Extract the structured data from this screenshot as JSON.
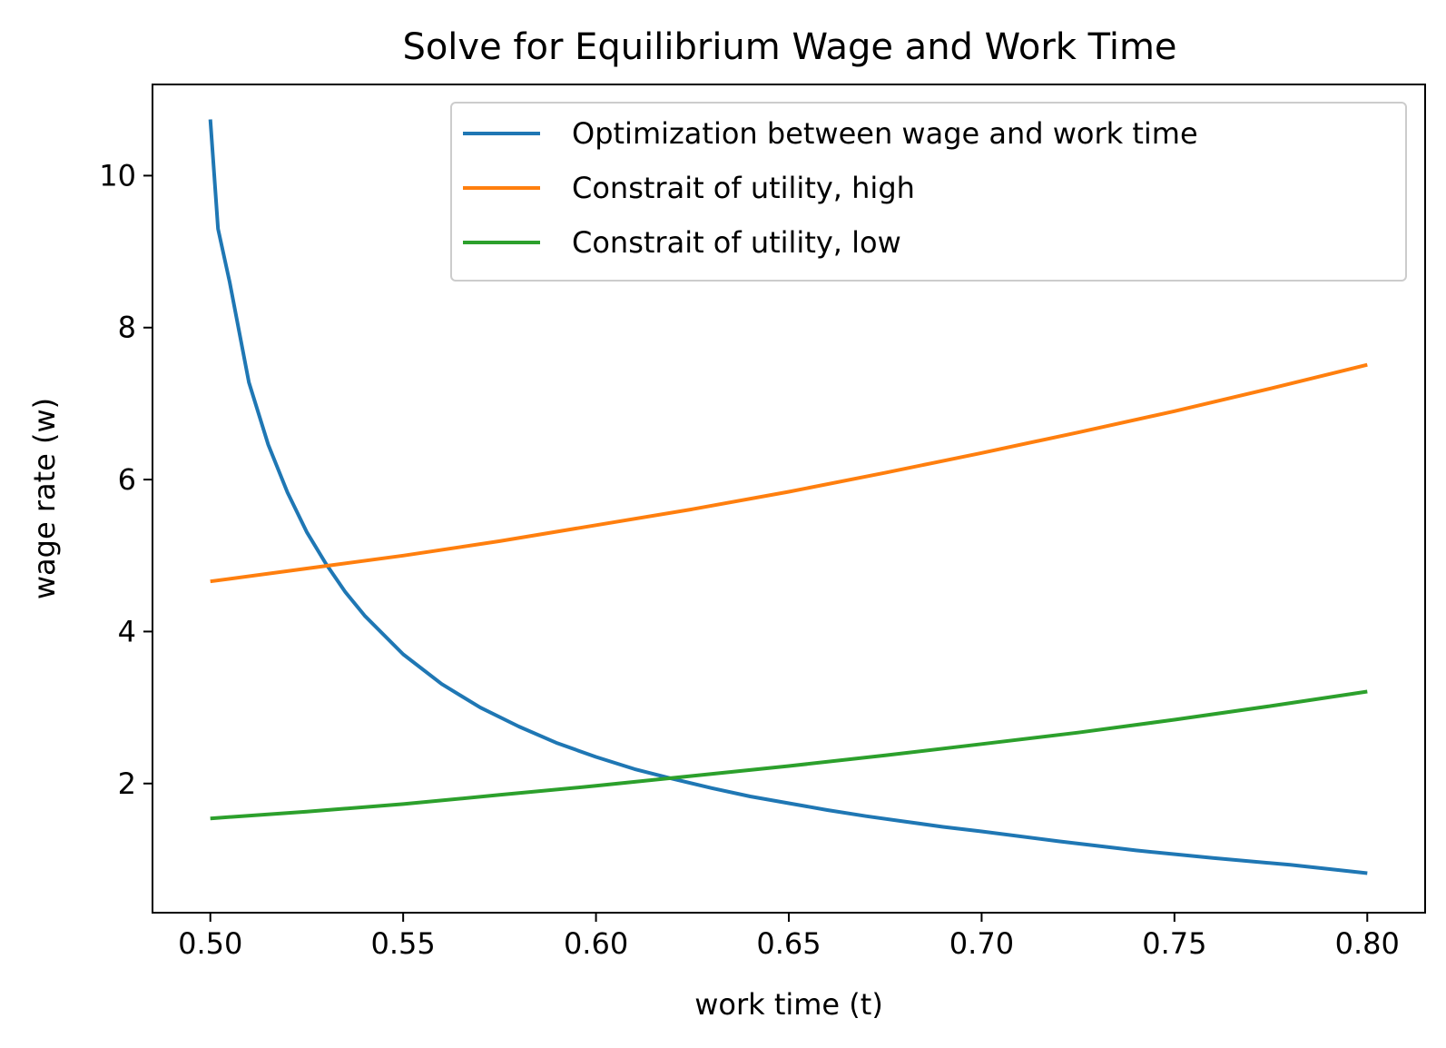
{
  "chart_data": {
    "type": "line",
    "title": "Solve for Equilibrium Wage and Work Time",
    "xlabel": "work time (t)",
    "ylabel": "wage rate (w)",
    "xlim": [
      0.485,
      0.815
    ],
    "ylim": [
      0.3,
      11.2
    ],
    "xticks": [
      0.5,
      0.55,
      0.6,
      0.65,
      0.7,
      0.75,
      0.8
    ],
    "xtick_labels": [
      "0.50",
      "0.55",
      "0.60",
      "0.65",
      "0.70",
      "0.75",
      "0.80"
    ],
    "yticks": [
      2,
      4,
      6,
      8,
      10
    ],
    "ytick_labels": [
      "2",
      "4",
      "6",
      "8",
      "10"
    ],
    "grid": false,
    "legend": "top-right",
    "series": [
      {
        "name": "Optimization between wage and work time",
        "color": "#1f77b4",
        "x": [
          0.5,
          0.502,
          0.505,
          0.51,
          0.515,
          0.52,
          0.525,
          0.53,
          0.535,
          0.54,
          0.55,
          0.56,
          0.57,
          0.58,
          0.59,
          0.6,
          0.61,
          0.62,
          0.63,
          0.64,
          0.65,
          0.66,
          0.67,
          0.68,
          0.69,
          0.7,
          0.72,
          0.74,
          0.76,
          0.78,
          0.8
        ],
        "y": [
          10.74,
          9.3,
          8.6,
          7.28,
          6.46,
          5.83,
          5.31,
          4.89,
          4.52,
          4.21,
          3.7,
          3.31,
          3.0,
          2.75,
          2.53,
          2.35,
          2.19,
          2.06,
          1.94,
          1.83,
          1.74,
          1.65,
          1.57,
          1.5,
          1.43,
          1.37,
          1.24,
          1.12,
          1.02,
          0.93,
          0.82
        ]
      },
      {
        "name": "Constrait of utility, high",
        "color": "#ff7f0e",
        "x": [
          0.5,
          0.525,
          0.55,
          0.575,
          0.6,
          0.625,
          0.65,
          0.675,
          0.7,
          0.725,
          0.75,
          0.775,
          0.8
        ],
        "y": [
          4.66,
          4.83,
          5.0,
          5.19,
          5.4,
          5.61,
          5.84,
          6.09,
          6.35,
          6.62,
          6.9,
          7.2,
          7.51
        ]
      },
      {
        "name": "Constrait of utility, low",
        "color": "#2ca02c",
        "x": [
          0.5,
          0.525,
          0.55,
          0.575,
          0.6,
          0.625,
          0.65,
          0.675,
          0.7,
          0.725,
          0.75,
          0.775,
          0.8
        ],
        "y": [
          1.54,
          1.63,
          1.73,
          1.85,
          1.97,
          2.1,
          2.23,
          2.37,
          2.52,
          2.67,
          2.84,
          3.02,
          3.21
        ]
      }
    ]
  }
}
